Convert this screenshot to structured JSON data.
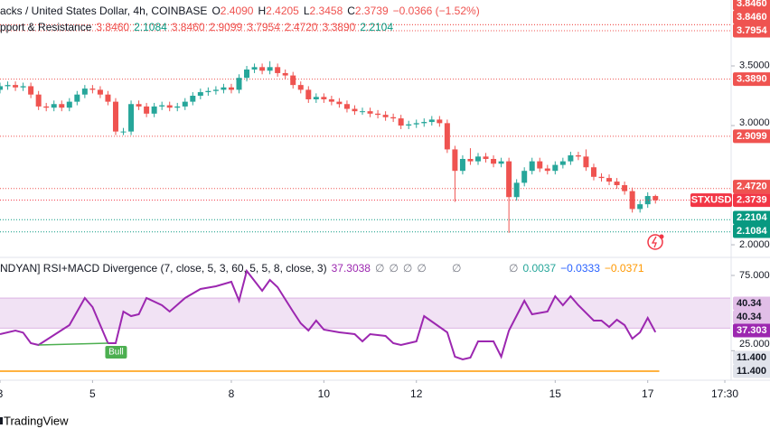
{
  "header": {
    "title": "acks / United States Dollar, 4h, COINBASE",
    "ohlc": [
      {
        "key": "O",
        "value": "2.4090"
      },
      {
        "key": "H",
        "value": "2.4205"
      },
      {
        "key": "L",
        "value": "2.3458"
      },
      {
        "key": "C",
        "value": "2.3739"
      }
    ],
    "change": "−0.0366 (−1.52%)",
    "color": "#ef5350"
  },
  "sr_legend": {
    "name": "pport & Resistance",
    "values": [
      {
        "text": "3.8460",
        "color": "#ef5350"
      },
      {
        "text": "2.1084",
        "color": "#089981"
      },
      {
        "text": "3.8460",
        "color": "#ef5350"
      },
      {
        "text": "2.9099",
        "color": "#ef5350"
      },
      {
        "text": "3.7954",
        "color": "#ef5350"
      },
      {
        "text": "2.4720",
        "color": "#ef5350"
      },
      {
        "text": "3.3890",
        "color": "#ef5350"
      },
      {
        "text": "2.2104",
        "color": "#089981"
      }
    ]
  },
  "rsi_legend": {
    "name": "NDYAN] RSI+MACD Divergence (7, close, 5, 3, 60, 5, 5, 8, close, 3)",
    "values": [
      {
        "text": "37.3038",
        "color": "#9c27b0"
      },
      {
        "text": "∅",
        "color": "#787b86"
      },
      {
        "text": "∅",
        "color": "#787b86"
      },
      {
        "text": "∅",
        "color": "#787b86"
      },
      {
        "text": "∅",
        "color": "#787b86"
      }
    ],
    "mid": [
      {
        "text": "∅",
        "color": "#787b86"
      }
    ],
    "right": [
      {
        "text": "∅",
        "color": "#787b86"
      },
      {
        "text": "0.0037",
        "color": "#26a69a"
      },
      {
        "text": "−0.0333",
        "color": "#2962ff"
      },
      {
        "text": "−0.0371",
        "color": "#ff9800"
      }
    ]
  },
  "footer": "TradingView",
  "chart_data": [
    {
      "type": "candlestick",
      "up_color": "#26a69a",
      "down_color": "#ef5350",
      "xlim": [
        0,
        94.7
      ],
      "ylim": [
        1.917,
        4.053
      ],
      "open": [
        3.3,
        3.33,
        3.34,
        3.32,
        3.33,
        3.26,
        3.16,
        3.15,
        3.18,
        3.15,
        3.2,
        3.26,
        3.31,
        3.3,
        3.26,
        3.2,
        2.95,
        2.95,
        3.18,
        3.16,
        3.1,
        3.16,
        3.17,
        3.15,
        3.16,
        3.2,
        3.25,
        3.28,
        3.29,
        3.3,
        3.32,
        3.3,
        3.4,
        3.47,
        3.49,
        3.46,
        3.49,
        3.44,
        3.42,
        3.34,
        3.3,
        3.22,
        3.24,
        3.22,
        3.2,
        3.18,
        3.14,
        3.12,
        3.12,
        3.1,
        3.09,
        3.07,
        3.06,
        3.0,
        3.01,
        3.02,
        3.03,
        3.05,
        3.02,
        2.8,
        2.62,
        2.72,
        2.7,
        2.74,
        2.72,
        2.68,
        2.7,
        2.4,
        2.52,
        2.62,
        2.7,
        2.64,
        2.62,
        2.67,
        2.7,
        2.75,
        2.74,
        2.65,
        2.57,
        2.56,
        2.53,
        2.5,
        2.45,
        2.3,
        2.34,
        2.409
      ],
      "high": [
        3.36,
        3.37,
        3.37,
        3.36,
        3.36,
        3.29,
        3.19,
        3.21,
        3.21,
        3.23,
        3.29,
        3.34,
        3.34,
        3.33,
        3.29,
        3.23,
        2.98,
        3.21,
        3.21,
        3.19,
        3.19,
        3.2,
        3.2,
        3.19,
        3.23,
        3.28,
        3.31,
        3.32,
        3.33,
        3.35,
        3.35,
        3.43,
        3.5,
        3.52,
        3.52,
        3.54,
        3.52,
        3.47,
        3.45,
        3.37,
        3.33,
        3.27,
        3.27,
        3.25,
        3.23,
        3.21,
        3.17,
        3.15,
        3.15,
        3.13,
        3.12,
        3.1,
        3.09,
        3.04,
        3.05,
        3.06,
        3.08,
        3.08,
        3.05,
        2.83,
        2.75,
        2.81,
        2.77,
        2.77,
        2.75,
        2.73,
        2.73,
        2.55,
        2.65,
        2.73,
        2.73,
        2.67,
        2.7,
        2.73,
        2.78,
        2.78,
        2.8,
        2.68,
        2.6,
        2.59,
        2.56,
        2.53,
        2.48,
        2.37,
        2.44,
        2.4205
      ],
      "low": [
        3.27,
        3.3,
        3.29,
        3.29,
        3.23,
        3.13,
        3.12,
        3.12,
        3.12,
        3.12,
        3.17,
        3.23,
        3.27,
        3.23,
        3.17,
        2.92,
        2.92,
        2.92,
        3.13,
        3.07,
        3.07,
        3.13,
        3.12,
        3.12,
        3.13,
        3.17,
        3.22,
        3.25,
        3.26,
        3.27,
        3.27,
        3.27,
        3.37,
        3.44,
        3.43,
        3.43,
        3.41,
        3.39,
        3.31,
        3.27,
        3.19,
        3.19,
        3.19,
        3.17,
        3.15,
        3.11,
        3.09,
        3.09,
        3.07,
        3.06,
        3.04,
        3.03,
        2.97,
        2.97,
        2.98,
        2.99,
        3.0,
        2.99,
        2.77,
        2.36,
        2.59,
        2.67,
        2.67,
        2.69,
        2.65,
        2.65,
        2.1,
        2.37,
        2.49,
        2.59,
        2.61,
        2.59,
        2.59,
        2.64,
        2.67,
        2.71,
        2.62,
        2.54,
        2.53,
        2.5,
        2.47,
        2.42,
        2.27,
        2.27,
        2.31,
        2.3458
      ],
      "close": [
        3.33,
        3.34,
        3.32,
        3.33,
        3.26,
        3.16,
        3.15,
        3.18,
        3.15,
        3.2,
        3.26,
        3.31,
        3.3,
        3.26,
        3.2,
        2.95,
        2.95,
        3.18,
        3.16,
        3.1,
        3.16,
        3.17,
        3.15,
        3.16,
        3.2,
        3.25,
        3.28,
        3.29,
        3.3,
        3.32,
        3.3,
        3.4,
        3.47,
        3.49,
        3.46,
        3.49,
        3.44,
        3.42,
        3.34,
        3.3,
        3.22,
        3.24,
        3.22,
        3.2,
        3.18,
        3.14,
        3.12,
        3.12,
        3.1,
        3.09,
        3.07,
        3.06,
        3.0,
        3.01,
        3.02,
        3.03,
        3.05,
        3.02,
        2.8,
        2.62,
        2.72,
        2.7,
        2.74,
        2.72,
        2.68,
        2.7,
        2.4,
        2.52,
        2.62,
        2.7,
        2.64,
        2.62,
        2.67,
        2.7,
        2.75,
        2.74,
        2.65,
        2.57,
        2.56,
        2.53,
        2.5,
        2.45,
        2.3,
        2.34,
        2.409,
        2.3739
      ],
      "xticks": [
        {
          "value": 0,
          "label": "3"
        },
        {
          "value": 12,
          "label": "5"
        },
        {
          "value": 30,
          "label": "8"
        },
        {
          "value": 42,
          "label": "10"
        },
        {
          "value": 54,
          "label": "12"
        },
        {
          "value": 72,
          "label": "15"
        },
        {
          "value": 84,
          "label": "17"
        },
        {
          "value": 94,
          "label": "17:30"
        }
      ],
      "yticks": [
        {
          "value": 3.5,
          "label": "3.5000"
        },
        {
          "value": 3,
          "label": "3.0000"
        },
        {
          "value": 2,
          "label": "2.0000"
        }
      ],
      "levels": [
        {
          "value": 3.846,
          "label": "3.8460",
          "color": "#ef5350"
        },
        {
          "value": 3.846,
          "label": "3.8460",
          "color": "#ef5350"
        },
        {
          "value": 3.7954,
          "label": "3.7954",
          "color": "#ef5350"
        },
        {
          "value": 3.389,
          "label": "3.3890",
          "color": "#ef5350"
        },
        {
          "value": 2.9099,
          "label": "2.9099",
          "color": "#ef5350"
        },
        {
          "value": 2.472,
          "label": "2.4720",
          "color": "#ef5350"
        },
        {
          "value": 2.2104,
          "label": "2.2104",
          "color": "#089981"
        },
        {
          "value": 2.1084,
          "label": "2.1084",
          "color": "#089981"
        }
      ],
      "last": {
        "value": 2.3739,
        "label": "2.3739",
        "name": "STXUSD",
        "color": "#f23645"
      }
    },
    {
      "type": "line",
      "color": "#9c27b0",
      "xlim": [
        0,
        94.7
      ],
      "ylim": [
        6,
        84
      ],
      "x": [
        0,
        2,
        3,
        4,
        5,
        9,
        11,
        12,
        14,
        15,
        16,
        17,
        18,
        19,
        21,
        22,
        24,
        26,
        28,
        30,
        31,
        32,
        34,
        35,
        36,
        38,
        39,
        40,
        41,
        42,
        44,
        46,
        47,
        48,
        50,
        51,
        52,
        54,
        55,
        56,
        58,
        59,
        60,
        61,
        62,
        64,
        65,
        66,
        68,
        69,
        71,
        72,
        73,
        74,
        75,
        77,
        78,
        79,
        80,
        81,
        82,
        83,
        84,
        85
      ],
      "values": [
        36,
        38.4,
        37,
        30,
        28.8,
        42,
        60,
        54,
        30,
        30,
        51,
        48,
        49.2,
        60,
        55.2,
        51,
        60,
        66,
        67.8,
        70.8,
        58.2,
        78,
        64.8,
        72,
        67.2,
        51,
        43.2,
        38.4,
        45,
        39,
        37.2,
        36,
        31.2,
        36,
        34.8,
        30,
        28.8,
        31.2,
        48,
        44.4,
        37.2,
        21,
        19.2,
        20.4,
        31.2,
        31.2,
        21,
        38.4,
        58.2,
        49.2,
        51,
        61.2,
        55.2,
        61.2,
        55.2,
        45,
        45,
        40.8,
        45.6,
        42,
        33,
        37.2,
        46.8,
        37.3038
      ],
      "band": [
        40,
        60
      ],
      "band_color": "#e1bee7",
      "hline": {
        "value": 11.4,
        "color": "#ff9800"
      },
      "yticks": [
        {
          "value": 75,
          "label": "75.000"
        },
        {
          "value": 25,
          "label": "25.000"
        }
      ],
      "levels": [
        {
          "value": 40.34,
          "color": "#e1bee7"
        },
        {
          "value": 40.34,
          "color": "#e1bee7"
        },
        {
          "value": 37.3038,
          "label": "37.303",
          "color": "#9c27b0"
        },
        {
          "value": 11.4,
          "label": "11.400",
          "color": "#e0e3eb"
        },
        {
          "value": 11.4,
          "label": "11.400",
          "color": "#e0e3eb"
        }
      ],
      "divergence": {
        "label": "Bull",
        "x": [
          5,
          14
        ],
        "y": [
          28.8,
          30
        ],
        "color": "#4caf50"
      }
    }
  ]
}
